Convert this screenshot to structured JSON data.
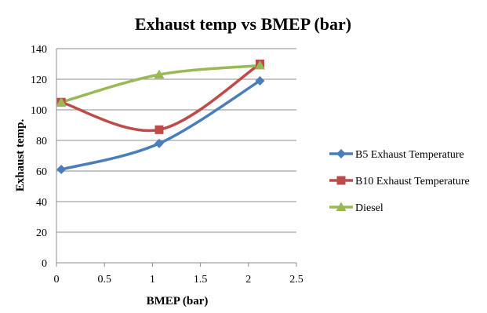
{
  "chart_data": {
    "type": "line",
    "title": "Exhaust temp vs BMEP (bar)",
    "xlabel": "BMEP (bar)",
    "ylabel": "Exhaust temp.",
    "xlim": [
      0,
      2.5
    ],
    "ylim": [
      0,
      140
    ],
    "x_ticks": [
      "0",
      "0.5",
      "1",
      "1.5",
      "2",
      "2.5"
    ],
    "y_ticks": [
      "0",
      "20",
      "40",
      "60",
      "80",
      "100",
      "120",
      "140"
    ],
    "grid": "horizontal",
    "legend_position": "right",
    "series": [
      {
        "name": "B5 Exhaust Temperature",
        "color": "#4a7ebb",
        "marker": "diamond",
        "x": [
          0.05,
          1.07,
          2.12
        ],
        "y": [
          61,
          78,
          119
        ]
      },
      {
        "name": "B10 Exhaust Temperature",
        "color": "#be4b48",
        "marker": "square",
        "x": [
          0.05,
          1.07,
          2.12
        ],
        "y": [
          105,
          87,
          130
        ]
      },
      {
        "name": "Diesel",
        "color": "#98b954",
        "marker": "triangle",
        "x": [
          0.05,
          1.07,
          2.12
        ],
        "y": [
          105,
          123,
          129
        ]
      }
    ]
  }
}
